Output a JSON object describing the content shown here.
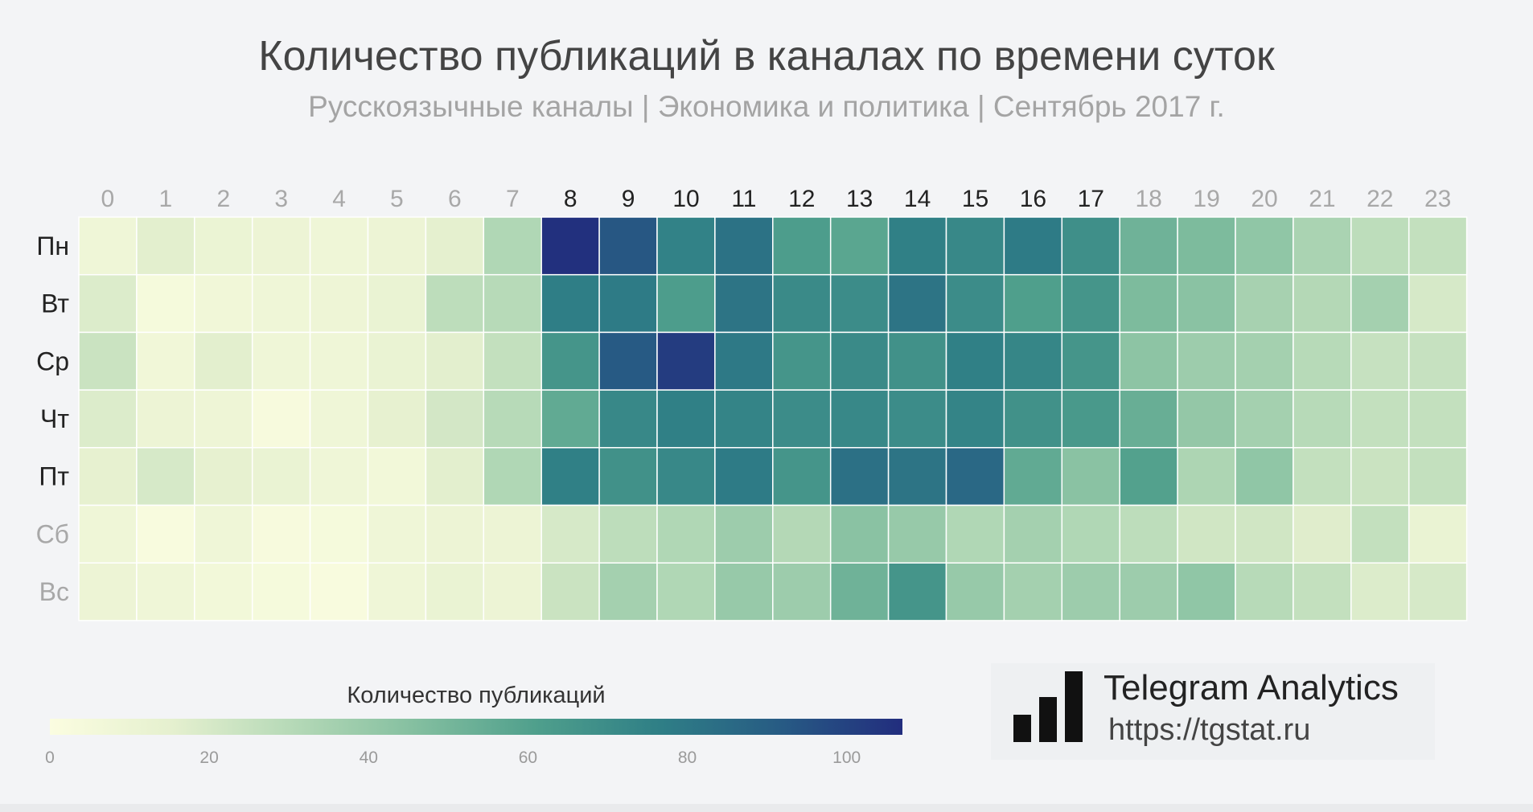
{
  "title": "Количество публикаций в каналах по времени суток",
  "subtitle": "Русскоязычные каналы | Экономика и политика | Сентябрь 2017 г.",
  "brand": {
    "name": "Telegram Analytics",
    "url": "https://tgstat.ru",
    "colors": {
      "text": "#222222",
      "bars": "#111111"
    }
  },
  "chart_data": {
    "type": "heatmap",
    "title": "Количество публикаций в каналах по времени суток",
    "subtitle": "Русскоязычные каналы | Экономика и политика | Сентябрь 2017 г.",
    "x": [
      "0",
      "1",
      "2",
      "3",
      "4",
      "5",
      "6",
      "7",
      "8",
      "9",
      "10",
      "11",
      "12",
      "13",
      "14",
      "15",
      "16",
      "17",
      "18",
      "19",
      "20",
      "21",
      "22",
      "23"
    ],
    "y": [
      "Пн",
      "Вт",
      "Ср",
      "Чт",
      "Пт",
      "Сб",
      "Вс"
    ],
    "values": [
      [
        8,
        16,
        11,
        10,
        8,
        10,
        15,
        32,
        106,
        93,
        75,
        82,
        62,
        58,
        76,
        72,
        78,
        69,
        52,
        48,
        42,
        34,
        28,
        26
      ],
      [
        18,
        4,
        7,
        8,
        9,
        12,
        28,
        30,
        77,
        78,
        62,
        81,
        71,
        70,
        81,
        70,
        61,
        66,
        48,
        44,
        35,
        31,
        36,
        20
      ],
      [
        24,
        7,
        16,
        8,
        8,
        12,
        16,
        26,
        66,
        92,
        102,
        79,
        66,
        71,
        68,
        76,
        73,
        66,
        43,
        38,
        36,
        30,
        25,
        25
      ],
      [
        18,
        10,
        9,
        3,
        8,
        14,
        21,
        30,
        56,
        72,
        76,
        74,
        70,
        72,
        70,
        74,
        68,
        64,
        54,
        41,
        36,
        30,
        26,
        26
      ],
      [
        14,
        20,
        14,
        12,
        8,
        6,
        16,
        32,
        76,
        68,
        72,
        78,
        66,
        83,
        81,
        86,
        56,
        44,
        60,
        33,
        42,
        26,
        24,
        26
      ],
      [
        8,
        2,
        8,
        3,
        4,
        8,
        10,
        10,
        20,
        28,
        32,
        38,
        31,
        44,
        40,
        32,
        36,
        32,
        28,
        22,
        22,
        17,
        26,
        12
      ],
      [
        10,
        8,
        6,
        4,
        2,
        8,
        12,
        10,
        24,
        36,
        32,
        40,
        38,
        52,
        66,
        40,
        36,
        38,
        38,
        42,
        30,
        26,
        18,
        20
      ]
    ],
    "highlighted_x": [
      "8",
      "9",
      "10",
      "11",
      "12",
      "13",
      "14",
      "15",
      "16",
      "17"
    ],
    "highlighted_y": [
      "Пн",
      "Вт",
      "Ср",
      "Чт",
      "Пт"
    ],
    "colorbar": {
      "title": "Количество публикаций",
      "range": [
        0,
        107
      ],
      "ticks": [
        0,
        20,
        40,
        60,
        80,
        100
      ],
      "colors": [
        "#fbfde0",
        "#e5f0cf",
        "#b5d9b7",
        "#84bfa0",
        "#4f9f8c",
        "#2f7f86",
        "#275b84",
        "#222d7e"
      ]
    },
    "grid": false
  }
}
